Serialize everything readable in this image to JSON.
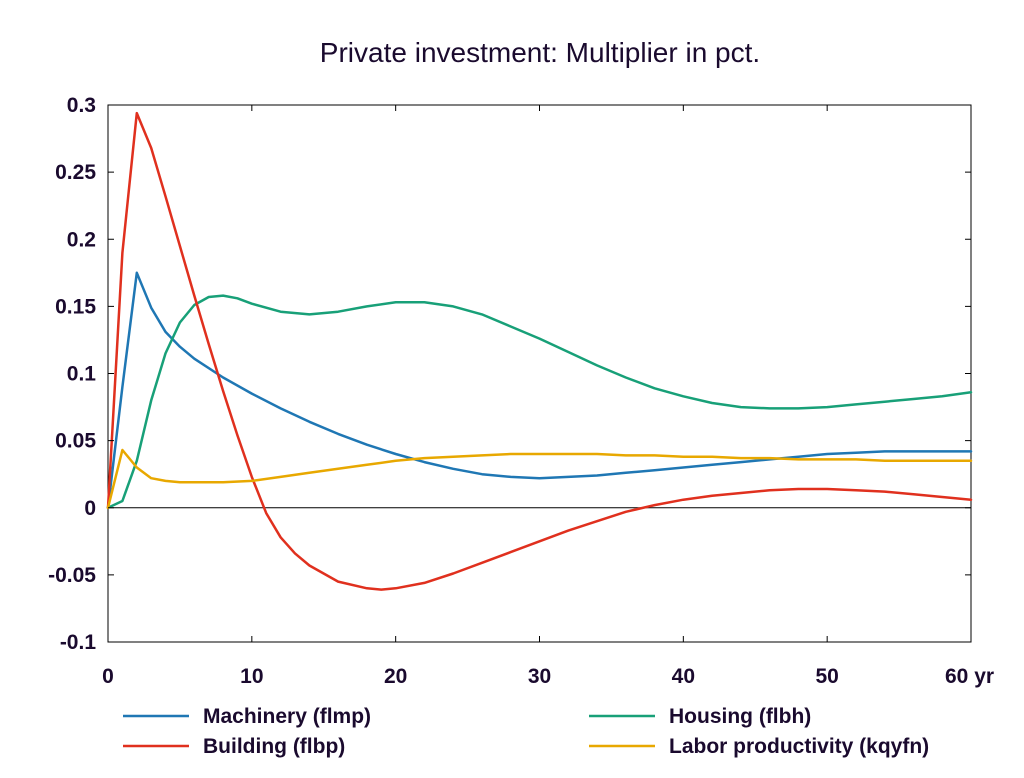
{
  "chart_data": {
    "type": "line",
    "title": "Private investment: Multiplier in pct.",
    "xlabel": "",
    "ylabel": "",
    "xlim": [
      0,
      60
    ],
    "ylim": [
      -0.1,
      0.3
    ],
    "x_ticks": [
      0,
      10,
      20,
      30,
      40,
      50,
      60
    ],
    "x_tick_labels": [
      "0",
      "10",
      "20",
      "30",
      "40",
      "50",
      "60 yr"
    ],
    "y_ticks": [
      -0.1,
      -0.05,
      0,
      0.05,
      0.1,
      0.15,
      0.2,
      0.25,
      0.3
    ],
    "y_tick_labels": [
      "-0.1",
      "-0.05",
      "0",
      "0.05",
      "0.1",
      "0.15",
      "0.2",
      "0.25",
      "0.3"
    ],
    "grid": false,
    "zero_line": true,
    "legend_position": "bottom",
    "series": [
      {
        "name": "Machinery (flmp)",
        "color": "#1f77b4",
        "x": [
          0,
          1,
          2,
          3,
          4,
          5,
          6,
          8,
          10,
          12,
          14,
          16,
          18,
          20,
          22,
          24,
          26,
          28,
          30,
          32,
          34,
          36,
          38,
          40,
          42,
          44,
          46,
          48,
          50,
          52,
          54,
          56,
          58,
          60
        ],
        "y": [
          0,
          0.09,
          0.175,
          0.149,
          0.131,
          0.12,
          0.111,
          0.097,
          0.085,
          0.074,
          0.064,
          0.055,
          0.047,
          0.04,
          0.034,
          0.029,
          0.025,
          0.023,
          0.022,
          0.023,
          0.024,
          0.026,
          0.028,
          0.03,
          0.032,
          0.034,
          0.036,
          0.038,
          0.04,
          0.041,
          0.042,
          0.042,
          0.042,
          0.042
        ]
      },
      {
        "name": "Housing (flbh)",
        "color": "#18a078",
        "x": [
          0,
          1,
          2,
          3,
          4,
          5,
          6,
          7,
          8,
          9,
          10,
          12,
          14,
          16,
          18,
          20,
          22,
          24,
          26,
          28,
          30,
          32,
          34,
          36,
          38,
          40,
          42,
          44,
          46,
          48,
          50,
          52,
          54,
          56,
          58,
          60
        ],
        "y": [
          0,
          0.005,
          0.035,
          0.08,
          0.115,
          0.138,
          0.151,
          0.157,
          0.158,
          0.156,
          0.152,
          0.146,
          0.144,
          0.146,
          0.15,
          0.153,
          0.153,
          0.15,
          0.144,
          0.135,
          0.126,
          0.116,
          0.106,
          0.097,
          0.089,
          0.083,
          0.078,
          0.075,
          0.074,
          0.074,
          0.075,
          0.077,
          0.079,
          0.081,
          0.083,
          0.086
        ]
      },
      {
        "name": "Building (flbp)",
        "color": "#e0301e",
        "x": [
          0,
          1,
          2,
          3,
          4,
          5,
          6,
          7,
          8,
          9,
          10,
          11,
          12,
          13,
          14,
          16,
          18,
          19,
          20,
          22,
          24,
          26,
          28,
          30,
          32,
          34,
          36,
          38,
          40,
          42,
          44,
          46,
          48,
          50,
          52,
          54,
          56,
          58,
          60
        ],
        "y": [
          0,
          0.19,
          0.294,
          0.268,
          0.232,
          0.195,
          0.158,
          0.122,
          0.087,
          0.054,
          0.023,
          -0.004,
          -0.022,
          -0.034,
          -0.043,
          -0.055,
          -0.06,
          -0.061,
          -0.06,
          -0.056,
          -0.049,
          -0.041,
          -0.033,
          -0.025,
          -0.017,
          -0.01,
          -0.003,
          0.002,
          0.006,
          0.009,
          0.011,
          0.013,
          0.014,
          0.014,
          0.013,
          0.012,
          0.01,
          0.008,
          0.006
        ]
      },
      {
        "name": "Labor productivity (kqyfn)",
        "color": "#e8a800",
        "x": [
          0,
          1,
          2,
          3,
          4,
          5,
          6,
          8,
          10,
          12,
          14,
          16,
          18,
          20,
          22,
          24,
          26,
          28,
          30,
          32,
          34,
          36,
          38,
          40,
          42,
          44,
          46,
          48,
          50,
          52,
          54,
          56,
          58,
          60
        ],
        "y": [
          0,
          0.043,
          0.03,
          0.022,
          0.02,
          0.019,
          0.019,
          0.019,
          0.02,
          0.023,
          0.026,
          0.029,
          0.032,
          0.035,
          0.037,
          0.038,
          0.039,
          0.04,
          0.04,
          0.04,
          0.04,
          0.039,
          0.039,
          0.038,
          0.038,
          0.037,
          0.037,
          0.036,
          0.036,
          0.036,
          0.035,
          0.035,
          0.035,
          0.035
        ]
      }
    ]
  }
}
